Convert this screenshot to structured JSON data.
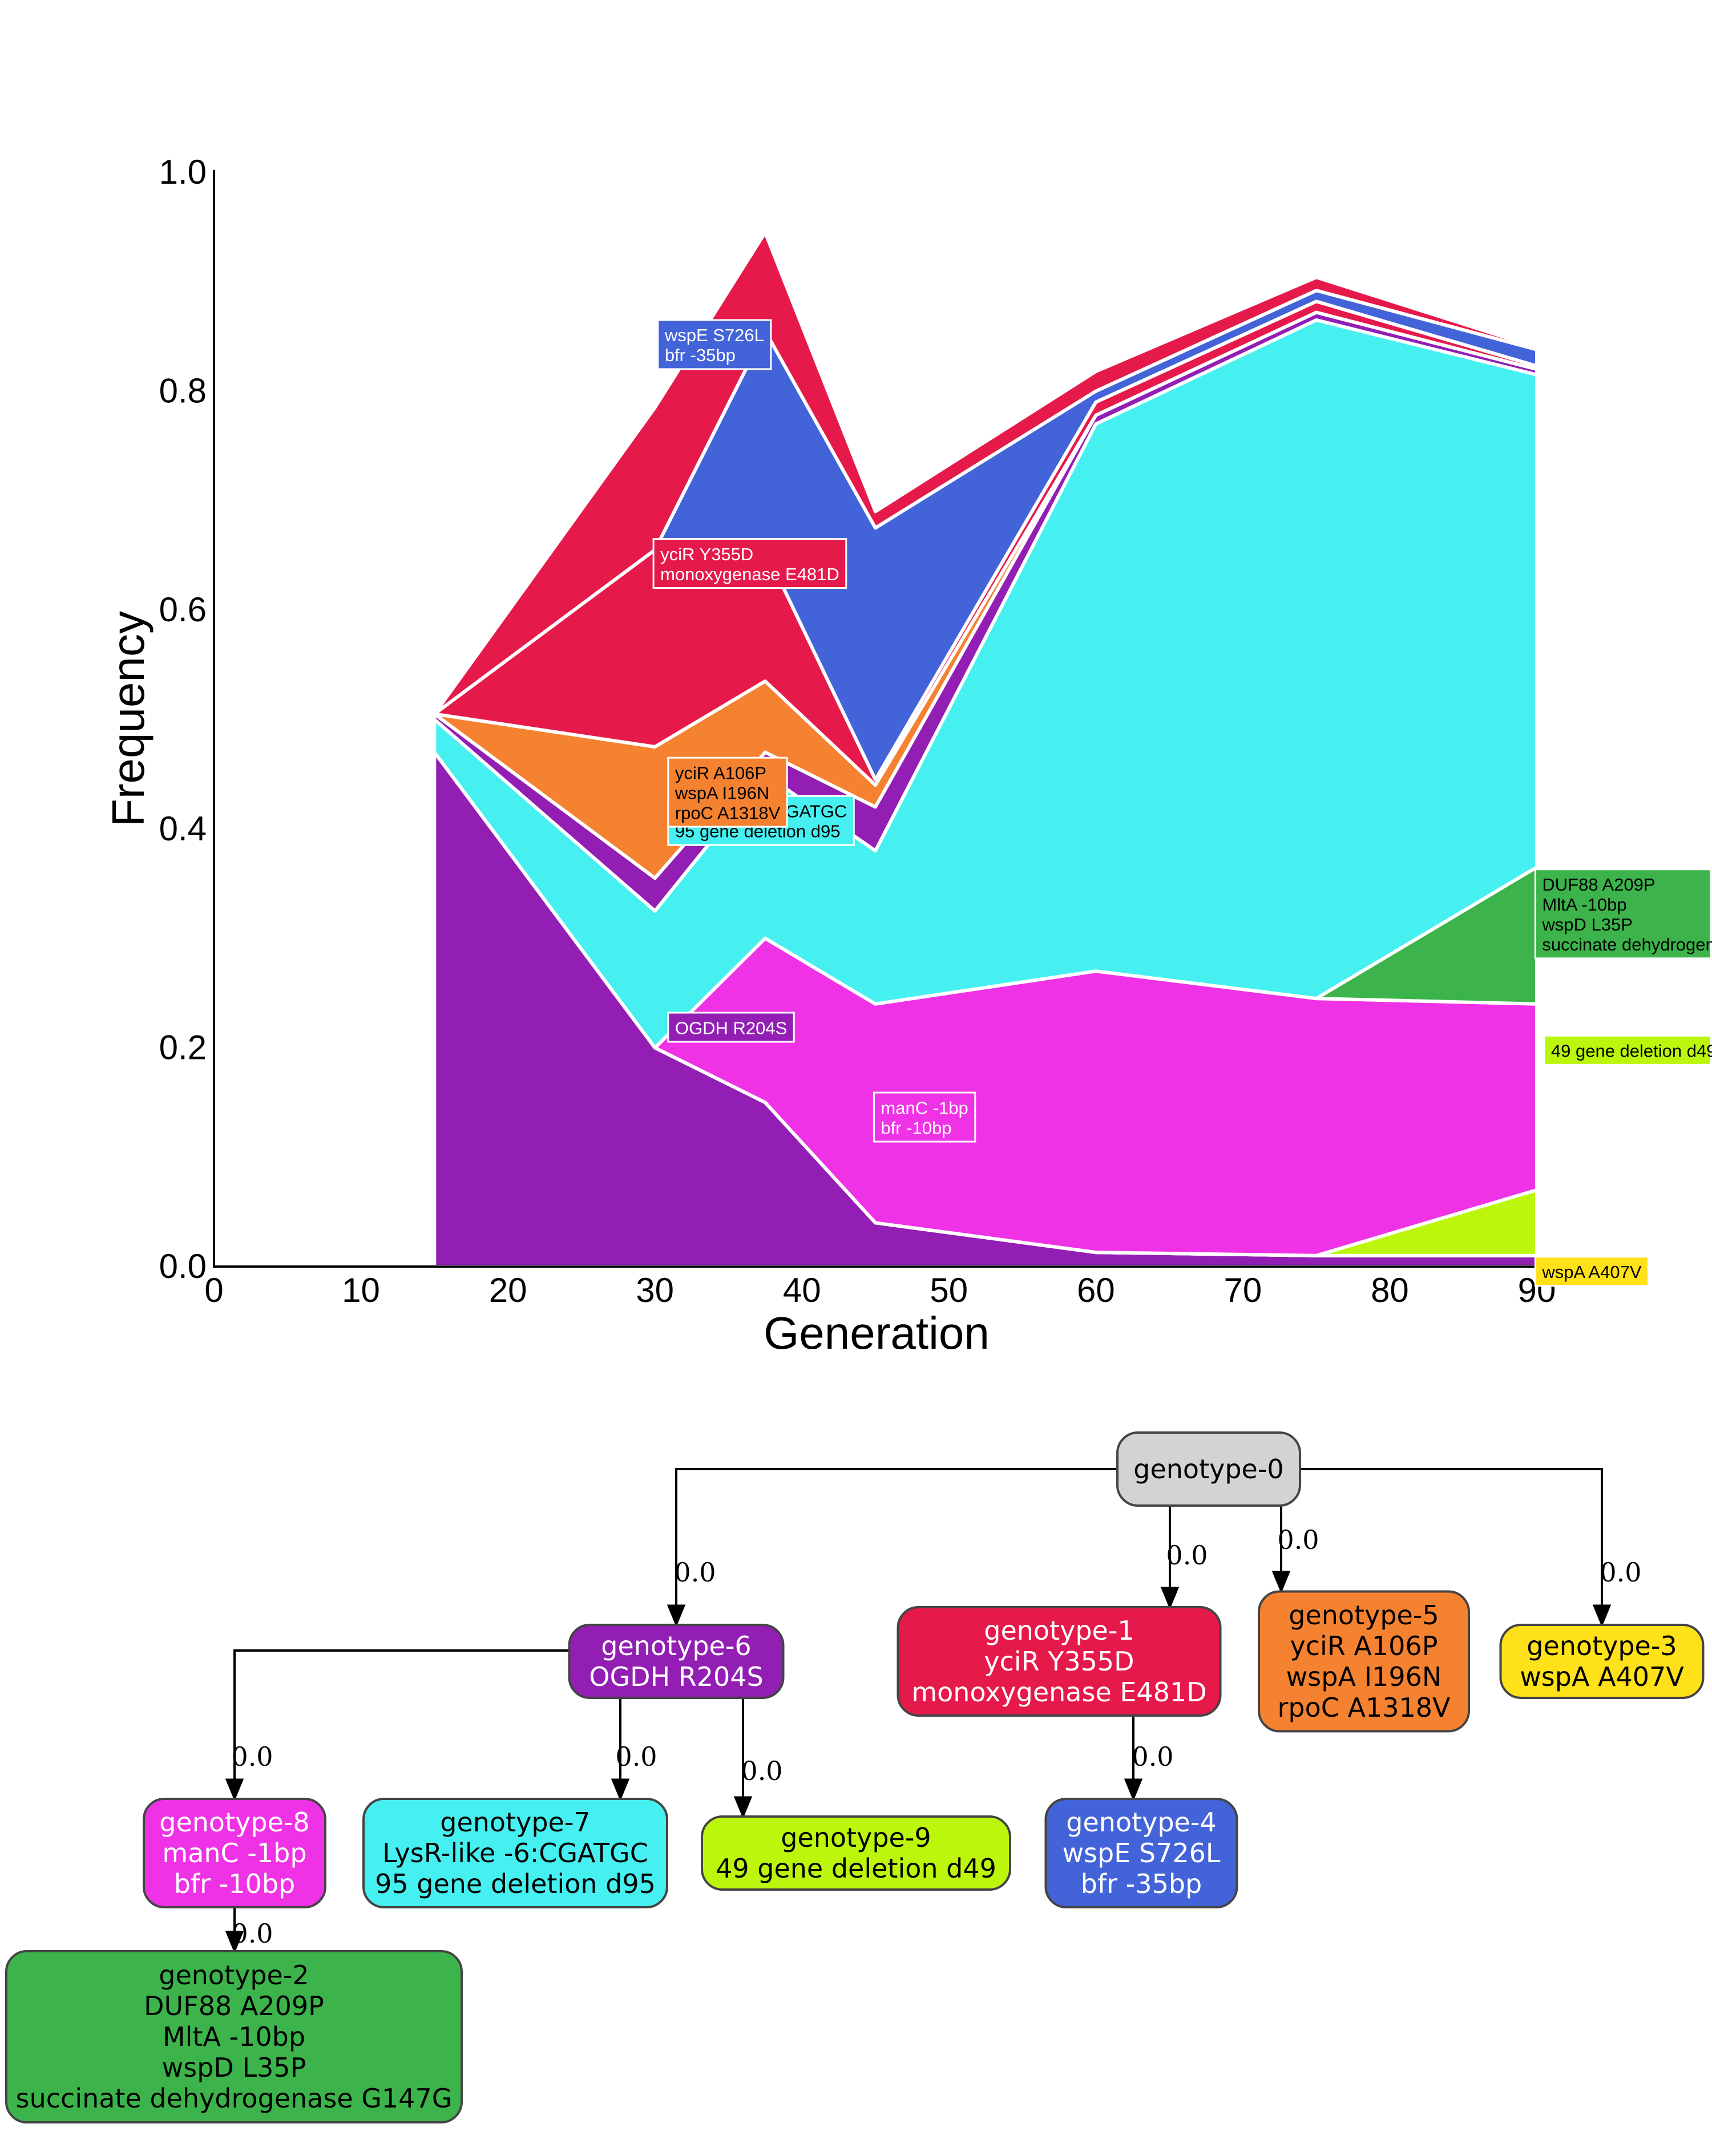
{
  "chart_data": {
    "type": "area",
    "title": "",
    "xlabel": "Generation",
    "ylabel": "Frequency",
    "xlim": [
      0,
      90
    ],
    "ylim": [
      0,
      1
    ],
    "xticks": [
      0,
      10,
      20,
      30,
      40,
      50,
      60,
      70,
      80,
      90
    ],
    "yticks": [
      "0.0",
      "0.2",
      "0.4",
      "0.6",
      "0.8",
      "1.0"
    ],
    "x": [
      15,
      30,
      37.5,
      45,
      60,
      75,
      90
    ],
    "series": [
      {
        "name": "OGDH R204S",
        "color": "#921eb4",
        "values": [
          0.47,
          0.2,
          0.15,
          0.04,
          0.013,
          0.01,
          0.01
        ],
        "label": {
          "lines": [
            "OGDH R204S"
          ],
          "x": 30.9,
          "y": 0.232,
          "text": "#ffffff"
        }
      },
      {
        "name": "wspA A407V",
        "color": "#ffe119",
        "values": [
          0,
          0,
          0,
          0,
          0,
          0,
          0
        ],
        "label": {
          "lines": [
            "wspA A407V"
          ],
          "x": 89.9,
          "y": 0.009,
          "text": "#000000"
        }
      },
      {
        "name": "49 gene deletion d49",
        "color": "#bcf60c",
        "values": [
          0,
          0,
          0,
          0,
          0,
          0,
          0.06
        ],
        "label": {
          "lines": [
            "49 gene deletion d49"
          ],
          "x": 90.5,
          "y": 0.211,
          "text": "#000000"
        }
      },
      {
        "name": "manC -1bp bfr -10bp",
        "color": "#f032e6",
        "values": [
          0,
          0,
          0.15,
          0.2,
          0.257,
          0.235,
          0.17
        ],
        "label": {
          "lines": [
            "manC -1bp",
            "bfr -10bp"
          ],
          "x": 44.9,
          "y": 0.159,
          "text": "#ffffff"
        }
      },
      {
        "name": "DUF88 A209P MltA -10bp wspD L35P succinate dehydrogenase G147G",
        "color": "#3cb44b",
        "values": [
          0,
          0,
          0,
          0,
          0,
          0,
          0.125
        ],
        "label": {
          "lines": [
            "DUF88 A209P",
            "MltA -10bp",
            "wspD L35P",
            "succinate dehydrogenase G147G"
          ],
          "x": 89.9,
          "y": 0.363,
          "text": "#000000"
        }
      },
      {
        "name": "LysR-like -6:CGATGC 95 gene deletion d95",
        "color": "#46f0f0",
        "values": [
          0.03,
          0.125,
          0.15,
          0.14,
          0.5,
          0.62,
          0.45
        ],
        "label": {
          "lines": [
            "LysR-like -6:CGATGC",
            "95 gene deletion d95"
          ],
          "x": 30.9,
          "y": 0.43,
          "text": "#000000"
        }
      },
      {
        "name": "OGDH R204S (upper)",
        "color": "#921eb4",
        "values": [
          0.005,
          0.03,
          0.02,
          0.04,
          0.008,
          0.007,
          0.005
        ]
      },
      {
        "name": "yciR A106P wspA I196N rpoC A1318V",
        "color": "#f58231",
        "values": [
          0,
          0.12,
          0.065,
          0.02,
          0,
          0,
          0
        ],
        "label": {
          "lines": [
            "yciR A106P",
            "wspA I196N",
            "rpoC A1318V"
          ],
          "x": 30.9,
          "y": 0.465,
          "text": "#000000"
        }
      },
      {
        "name": "yciR Y355D monoxygenase E481D",
        "color": "#e6194b",
        "values": [
          0,
          0.18,
          0.12,
          0.005,
          0.012,
          0.01,
          0.003
        ],
        "label": {
          "lines": [
            "yciR Y355D",
            "monoxygenase E481D"
          ],
          "x": 29.9,
          "y": 0.665,
          "text": "#ffffff"
        }
      },
      {
        "name": "wspE S726L bfr -35bp",
        "color": "#4363d8",
        "values": [
          0,
          0,
          0.2,
          0.23,
          0.01,
          0.01,
          0.015
        ],
        "label": {
          "lines": [
            "wspE S726L",
            "bfr -35bp"
          ],
          "x": 30.2,
          "y": 0.865,
          "text": "#ffffff"
        }
      },
      {
        "name": "yciR Y355D monoxygenase E481D (upper)",
        "color": "#e6194b",
        "values": [
          0,
          0.13,
          0.09,
          0.015,
          0.018,
          0.012,
          0.002
        ]
      }
    ]
  },
  "tree": {
    "nodes": [
      {
        "id": "genotype-0",
        "lines": [
          "genotype-0"
        ],
        "fill": "#d3d3d3",
        "text": "#000000"
      },
      {
        "id": "genotype-6",
        "lines": [
          "genotype-6",
          "OGDH R204S"
        ],
        "fill": "#921eb4",
        "text": "#ffffff"
      },
      {
        "id": "genotype-1",
        "lines": [
          "genotype-1",
          "yciR Y355D",
          "monoxygenase E481D"
        ],
        "fill": "#e6194b",
        "text": "#ffffff"
      },
      {
        "id": "genotype-5",
        "lines": [
          "genotype-5",
          "yciR A106P",
          "wspA I196N",
          "rpoC A1318V"
        ],
        "fill": "#f58231",
        "text": "#000000"
      },
      {
        "id": "genotype-3",
        "lines": [
          "genotype-3",
          "wspA A407V"
        ],
        "fill": "#ffe119",
        "text": "#000000"
      },
      {
        "id": "genotype-8",
        "lines": [
          "genotype-8",
          "manC -1bp",
          "bfr -10bp"
        ],
        "fill": "#f032e6",
        "text": "#ffffff"
      },
      {
        "id": "genotype-7",
        "lines": [
          "genotype-7",
          "LysR-like -6:CGATGC",
          "95 gene deletion d95"
        ],
        "fill": "#46f0f0",
        "text": "#000000"
      },
      {
        "id": "genotype-9",
        "lines": [
          "genotype-9",
          "49 gene deletion d49"
        ],
        "fill": "#bcf60c",
        "text": "#000000"
      },
      {
        "id": "genotype-4",
        "lines": [
          "genotype-4",
          "wspE S726L",
          "bfr -35bp"
        ],
        "fill": "#4363d8",
        "text": "#ffffff"
      },
      {
        "id": "genotype-2",
        "lines": [
          "genotype-2",
          "DUF88 A209P",
          "MltA -10bp",
          "wspD L35P",
          "succinate dehydrogenase G147G"
        ],
        "fill": "#3cb44b",
        "text": "#000000"
      }
    ],
    "edges": [
      {
        "from": "genotype-0",
        "to": "genotype-6",
        "label": "0.0"
      },
      {
        "from": "genotype-0",
        "to": "genotype-1",
        "label": "0.0"
      },
      {
        "from": "genotype-0",
        "to": "genotype-5",
        "label": "0.0"
      },
      {
        "from": "genotype-0",
        "to": "genotype-3",
        "label": "0.0"
      },
      {
        "from": "genotype-6",
        "to": "genotype-8",
        "label": "0.0"
      },
      {
        "from": "genotype-6",
        "to": "genotype-7",
        "label": "0.0"
      },
      {
        "from": "genotype-6",
        "to": "genotype-9",
        "label": "0.0"
      },
      {
        "from": "genotype-1",
        "to": "genotype-4",
        "label": "0.0"
      },
      {
        "from": "genotype-8",
        "to": "genotype-2",
        "label": "0.0"
      }
    ]
  }
}
